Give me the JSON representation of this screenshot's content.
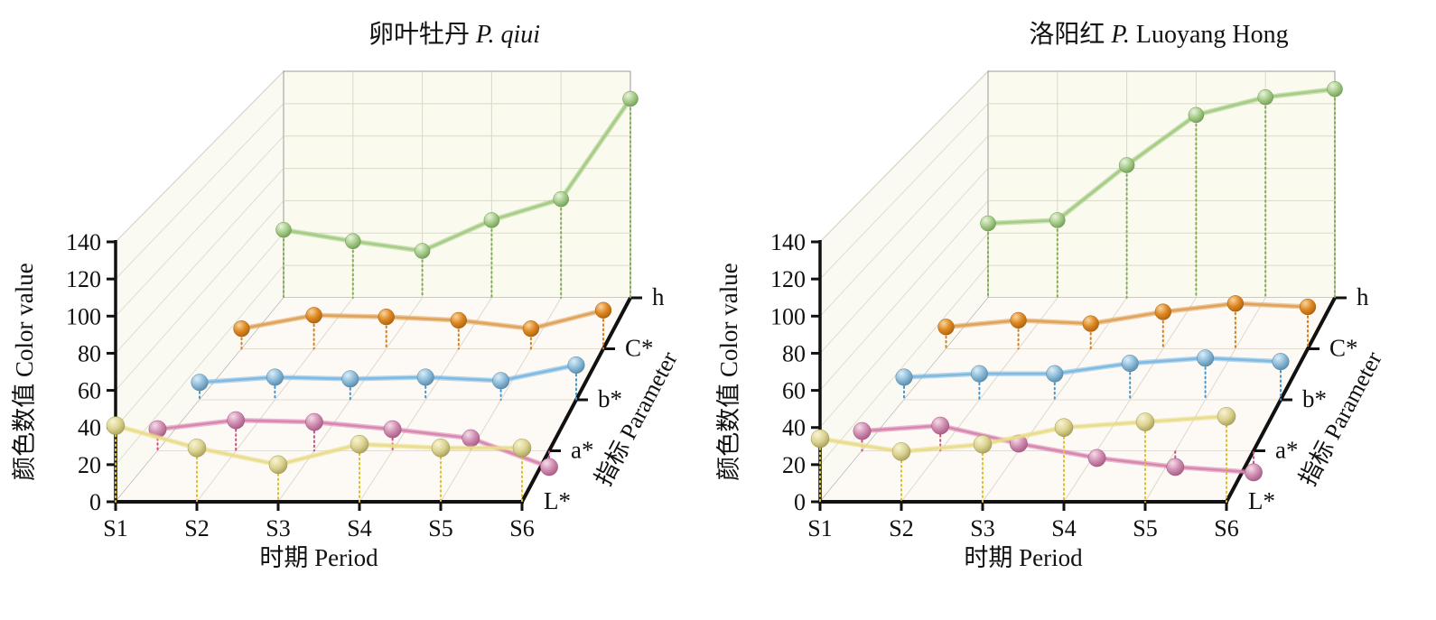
{
  "figure": {
    "background": "#ffffff",
    "description_left_title": "卵叶牡丹 P. qiui",
    "description_right_title": "洛阳红 P. Luoyang Hong"
  },
  "palette": {
    "yellow": {
      "light": "#f8f4d5",
      "ball": "#dcd492",
      "dark": "#9c934c",
      "line": "#e9dc8b",
      "drop": "#dec02e"
    },
    "pink": {
      "light": "#f5dde9",
      "ball": "#d08eb2",
      "dark": "#9c4f76",
      "line": "#d884ae",
      "drop": "#cf4d84"
    },
    "blue": {
      "light": "#ddeef8",
      "ball": "#8cbcd9",
      "dark": "#4f7e9e",
      "line": "#7cb8e2",
      "drop": "#4596cc"
    },
    "orange": {
      "light": "#f6d6a0",
      "ball": "#e08822",
      "dark": "#9e5a0a",
      "line": "#dfa158",
      "drop": "#df7c14"
    },
    "green": {
      "light": "#eaf4dd",
      "ball": "#a7cc8b",
      "dark": "#67944a",
      "line": "#a3ca84",
      "drop": "#7fae54"
    }
  },
  "chart_data": [
    {
      "type": "line",
      "projection": "3d",
      "title_parts": [
        {
          "text": "卵叶牡丹 ",
          "italic": false
        },
        {
          "text": "P. qiui",
          "italic": true
        }
      ],
      "xlabel": "时期 Period",
      "ylabel": "颜色数值 Color value",
      "zlabel": "指标 Parameter",
      "categories": [
        "S1",
        "S2",
        "S3",
        "S4",
        "S5",
        "S6"
      ],
      "yticks": [
        0,
        20,
        40,
        60,
        80,
        100,
        120,
        140
      ],
      "ylim": [
        0,
        140
      ],
      "param_planes": [
        "L*",
        "a*",
        "b*",
        "C*",
        "h"
      ],
      "grid": true,
      "series": [
        {
          "name": "L*",
          "plane": 0,
          "color": "yellow",
          "values": [
            41,
            29,
            20,
            31,
            29,
            29
          ]
        },
        {
          "name": "a*",
          "plane": 1,
          "color": "pink",
          "values": [
            12,
            17,
            16,
            12,
            7,
            -9
          ]
        },
        {
          "name": "b*",
          "plane": 2,
          "color": "blue",
          "values": [
            10,
            13,
            12,
            13,
            11,
            20
          ]
        },
        {
          "name": "C*",
          "plane": 3,
          "color": "orange",
          "values": [
            12,
            20,
            19,
            17,
            12,
            23
          ]
        },
        {
          "name": "h",
          "plane": 4,
          "color": "green",
          "values": [
            42,
            35,
            29,
            48,
            61,
            123
          ]
        }
      ]
    },
    {
      "type": "line",
      "projection": "3d",
      "title_parts": [
        {
          "text": "洛阳红 ",
          "italic": false
        },
        {
          "text": "P.",
          "italic": true
        },
        {
          "text": " Luoyang Hong",
          "italic": false
        }
      ],
      "xlabel": "时期 Period",
      "ylabel": "颜色数值 Color value",
      "zlabel": "指标 Parameter",
      "categories": [
        "S1",
        "S2",
        "S3",
        "S4",
        "S5",
        "S6"
      ],
      "yticks": [
        0,
        20,
        40,
        60,
        80,
        100,
        120,
        140
      ],
      "ylim": [
        0,
        140
      ],
      "param_planes": [
        "L*",
        "a*",
        "b*",
        "C*",
        "h"
      ],
      "grid": true,
      "series": [
        {
          "name": "L*",
          "plane": 0,
          "color": "yellow",
          "values": [
            34,
            27,
            31,
            40,
            43,
            46
          ]
        },
        {
          "name": "a*",
          "plane": 1,
          "color": "pink",
          "values": [
            11,
            14,
            4,
            -4,
            -9,
            -12
          ]
        },
        {
          "name": "b*",
          "plane": 2,
          "color": "blue",
          "values": [
            13,
            15,
            15,
            21,
            24,
            22
          ]
        },
        {
          "name": "C*",
          "plane": 3,
          "color": "orange",
          "values": [
            13,
            17,
            15,
            22,
            27,
            25
          ]
        },
        {
          "name": "h",
          "plane": 4,
          "color": "green",
          "values": [
            46,
            48,
            82,
            113,
            124,
            129
          ]
        }
      ]
    }
  ]
}
